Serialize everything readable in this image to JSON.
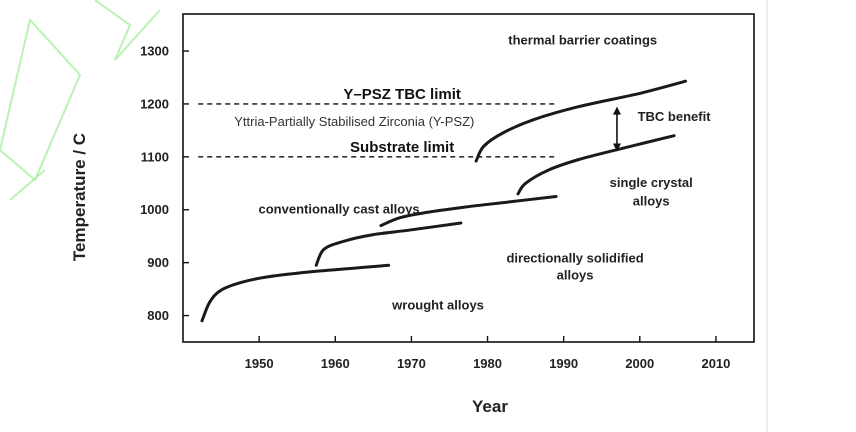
{
  "chart_data": {
    "type": "line",
    "xlabel": "Year",
    "ylabel": "Temperature / C",
    "xlim": [
      1940,
      2015
    ],
    "ylim": [
      750,
      1370
    ],
    "x_ticks": [
      1950,
      1960,
      1970,
      1980,
      1990,
      2000,
      2010
    ],
    "y_ticks": [
      800,
      900,
      1000,
      1100,
      1200,
      1300
    ],
    "grid": false,
    "series": [
      {
        "name": "wrought alloys",
        "x": [
          1942.5,
          1943.5,
          1945,
          1948,
          1952,
          1957,
          1962,
          1967
        ],
        "y": [
          790,
          825,
          848,
          864,
          875,
          883,
          889,
          895
        ]
      },
      {
        "name": "conventionally cast alloys",
        "x": [
          1957.5,
          1958.5,
          1961,
          1965,
          1970,
          1976.5
        ],
        "y": [
          895,
          925,
          940,
          953,
          962,
          975
        ]
      },
      {
        "name": "directionally solidified alloys",
        "x": [
          1966,
          1968.5,
          1972,
          1977,
          1983,
          1989
        ],
        "y": [
          970,
          985,
          995,
          1005,
          1015,
          1025
        ]
      },
      {
        "name": "single crystal alloys",
        "x": [
          1984,
          1985,
          1988,
          1992,
          1998,
          2004.5
        ],
        "y": [
          1030,
          1050,
          1075,
          1095,
          1117,
          1140
        ]
      },
      {
        "name": "thermal barrier coatings",
        "x": [
          1978.5,
          1979.5,
          1982,
          1986,
          1992,
          2000,
          2006
        ],
        "y": [
          1092,
          1120,
          1145,
          1170,
          1195,
          1220,
          1243
        ]
      }
    ],
    "reference_lines": [
      {
        "label": "Y–PSZ TBC limit",
        "y": 1200,
        "x_start": 1942,
        "x_end": 1989
      },
      {
        "label": "Substrate limit",
        "y": 1100,
        "x_start": 1942,
        "x_end": 1989
      }
    ],
    "annotations": [
      {
        "text": "thermal barrier coatings",
        "x": 1992.5,
        "y": 1312
      },
      {
        "text": "Yttria-Partially Stabilised Zirconia (Y-PSZ)",
        "x": 1962.5,
        "y": 1158
      },
      {
        "text": "TBC benefit",
        "x": 2004.5,
        "y": 1168
      },
      {
        "text": "single crystal",
        "x": 2001.5,
        "y": 1043
      },
      {
        "text": "alloys",
        "x": 2001.5,
        "y": 1008
      },
      {
        "text": "conventionally cast alloys",
        "x": 1960.5,
        "y": 993
      },
      {
        "text": "directionally solidified",
        "x": 1991.5,
        "y": 900
      },
      {
        "text": "alloys",
        "x": 1991.5,
        "y": 868
      },
      {
        "text": "wrought alloys",
        "x": 1973.5,
        "y": 811
      }
    ],
    "tbc_benefit_arrow": {
      "x": 1997,
      "y_from": 1195,
      "y_to": 1110
    }
  }
}
